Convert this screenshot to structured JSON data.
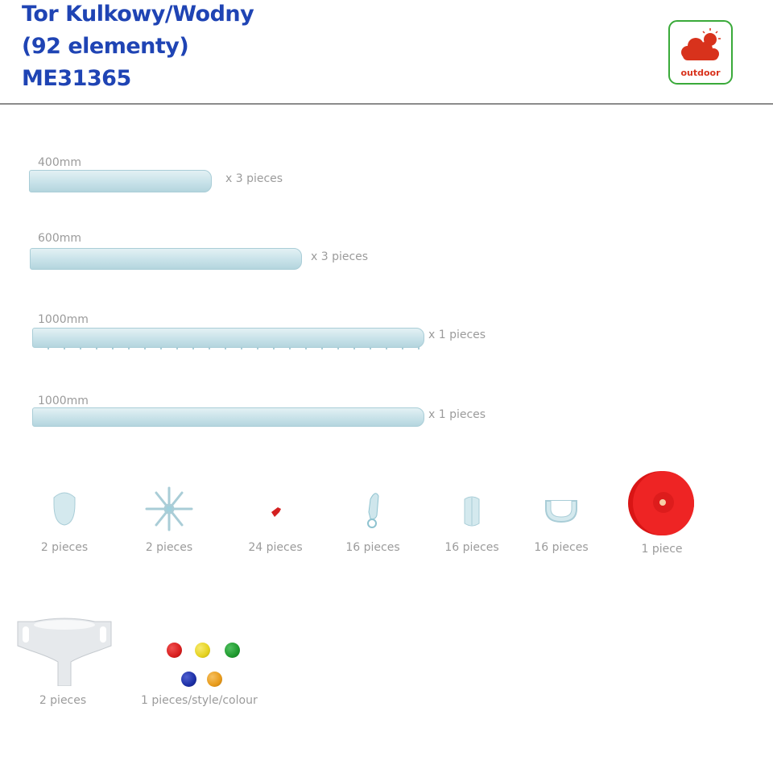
{
  "header": {
    "title_lines": [
      "Tor Kulkowy/Wodny",
      "(92 elementy)",
      "ME31365"
    ],
    "badge": {
      "icon": "cloud-sun-icon",
      "label": "outdoor"
    }
  },
  "tubes": [
    {
      "length": "400mm",
      "quantity": "x 3 pieces"
    },
    {
      "length": "600mm",
      "quantity": "x 3 pieces"
    },
    {
      "length": "1000mm",
      "quantity": "x 1 pieces"
    },
    {
      "length": "1000mm",
      "quantity": "x 1 pieces"
    }
  ],
  "parts": [
    {
      "icon": "end-cap-icon",
      "quantity": "2 pieces"
    },
    {
      "icon": "water-wheel-icon",
      "quantity": "2 pieces"
    },
    {
      "icon": "pin-icon",
      "quantity": "24 pieces"
    },
    {
      "icon": "clip-icon",
      "quantity": "16 pieces"
    },
    {
      "icon": "connector-icon",
      "quantity": "16 pieces"
    },
    {
      "icon": "bracket-icon",
      "quantity": "16 pieces"
    },
    {
      "icon": "wheel-icon",
      "quantity": "1 piece"
    }
  ],
  "extras": [
    {
      "icon": "funnel-icon",
      "quantity": "2 pieces"
    },
    {
      "icon": "balls-icon",
      "quantity": "1 pieces/style/colour",
      "colors": [
        "#d81e1e",
        "#e5d21f",
        "#1f9a2e",
        "#1c2fa6",
        "#e79a1a"
      ]
    }
  ],
  "colors": {
    "title": "#1f44b4",
    "badge_border": "#3aaa3a",
    "badge_icon": "#d8321c",
    "tube": "#c8e2e9",
    "wheel": "#e82020"
  }
}
